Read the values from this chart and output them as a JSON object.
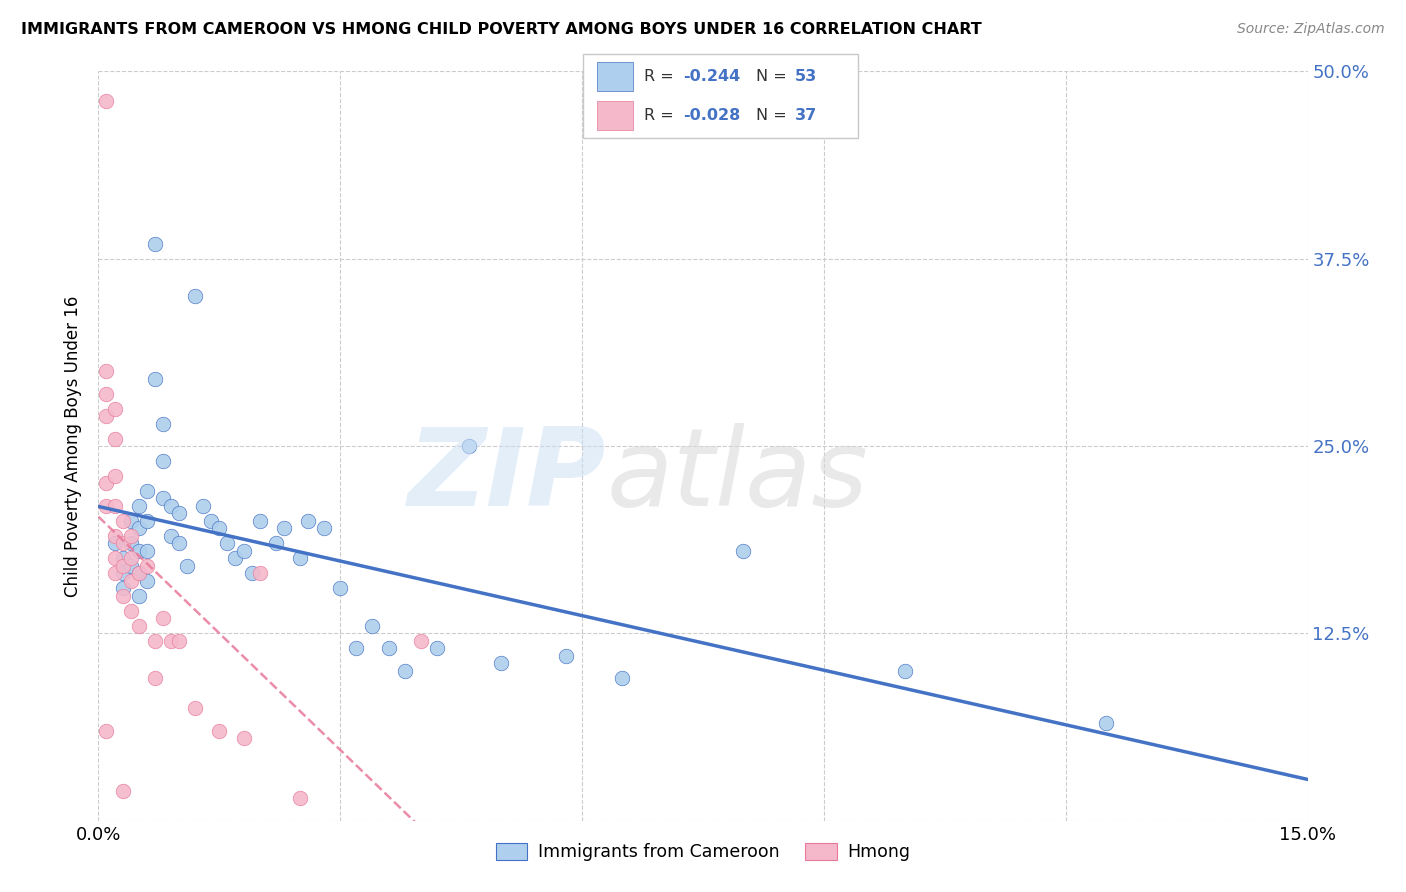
{
  "title": "IMMIGRANTS FROM CAMEROON VS HMONG CHILD POVERTY AMONG BOYS UNDER 16 CORRELATION CHART",
  "source": "Source: ZipAtlas.com",
  "ylabel": "Child Poverty Among Boys Under 16",
  "xlim": [
    0.0,
    0.15
  ],
  "ylim": [
    0.0,
    0.5
  ],
  "x_ticks": [
    0.0,
    0.03,
    0.06,
    0.09,
    0.12,
    0.15
  ],
  "y_ticks": [
    0.0,
    0.125,
    0.25,
    0.375,
    0.5
  ],
  "y_tick_labels": [
    "",
    "12.5%",
    "25.0%",
    "37.5%",
    "50.0%"
  ],
  "r_blue": -0.244,
  "n_blue": 53,
  "r_pink": -0.028,
  "n_pink": 37,
  "color_blue": "#aecfed",
  "color_pink": "#f4b8ca",
  "line_blue": "#4472c4",
  "line_pink": "#e8799a",
  "legend_label_blue": "Immigrants from Cameroon",
  "legend_label_pink": "Hmong",
  "blue_x": [
    0.002,
    0.003,
    0.003,
    0.003,
    0.004,
    0.004,
    0.004,
    0.005,
    0.005,
    0.005,
    0.005,
    0.005,
    0.006,
    0.006,
    0.006,
    0.006,
    0.007,
    0.007,
    0.008,
    0.008,
    0.008,
    0.009,
    0.009,
    0.01,
    0.01,
    0.011,
    0.012,
    0.013,
    0.014,
    0.015,
    0.016,
    0.017,
    0.018,
    0.019,
    0.02,
    0.022,
    0.023,
    0.025,
    0.026,
    0.028,
    0.03,
    0.032,
    0.034,
    0.036,
    0.038,
    0.042,
    0.046,
    0.05,
    0.058,
    0.065,
    0.08,
    0.1,
    0.125
  ],
  "blue_y": [
    0.185,
    0.175,
    0.165,
    0.155,
    0.2,
    0.185,
    0.17,
    0.21,
    0.195,
    0.18,
    0.165,
    0.15,
    0.22,
    0.2,
    0.18,
    0.16,
    0.385,
    0.295,
    0.265,
    0.24,
    0.215,
    0.21,
    0.19,
    0.205,
    0.185,
    0.17,
    0.35,
    0.21,
    0.2,
    0.195,
    0.185,
    0.175,
    0.18,
    0.165,
    0.2,
    0.185,
    0.195,
    0.175,
    0.2,
    0.195,
    0.155,
    0.115,
    0.13,
    0.115,
    0.1,
    0.115,
    0.25,
    0.105,
    0.11,
    0.095,
    0.18,
    0.1,
    0.065
  ],
  "pink_x": [
    0.001,
    0.001,
    0.001,
    0.001,
    0.001,
    0.001,
    0.001,
    0.002,
    0.002,
    0.002,
    0.002,
    0.002,
    0.002,
    0.002,
    0.003,
    0.003,
    0.003,
    0.003,
    0.003,
    0.004,
    0.004,
    0.004,
    0.004,
    0.005,
    0.005,
    0.006,
    0.007,
    0.007,
    0.008,
    0.009,
    0.01,
    0.012,
    0.015,
    0.018,
    0.02,
    0.025,
    0.04
  ],
  "pink_y": [
    0.48,
    0.3,
    0.285,
    0.27,
    0.225,
    0.21,
    0.06,
    0.275,
    0.255,
    0.23,
    0.21,
    0.19,
    0.175,
    0.165,
    0.2,
    0.185,
    0.17,
    0.15,
    0.02,
    0.19,
    0.175,
    0.16,
    0.14,
    0.165,
    0.13,
    0.17,
    0.12,
    0.095,
    0.135,
    0.12,
    0.12,
    0.075,
    0.06,
    0.055,
    0.165,
    0.015,
    0.12
  ]
}
